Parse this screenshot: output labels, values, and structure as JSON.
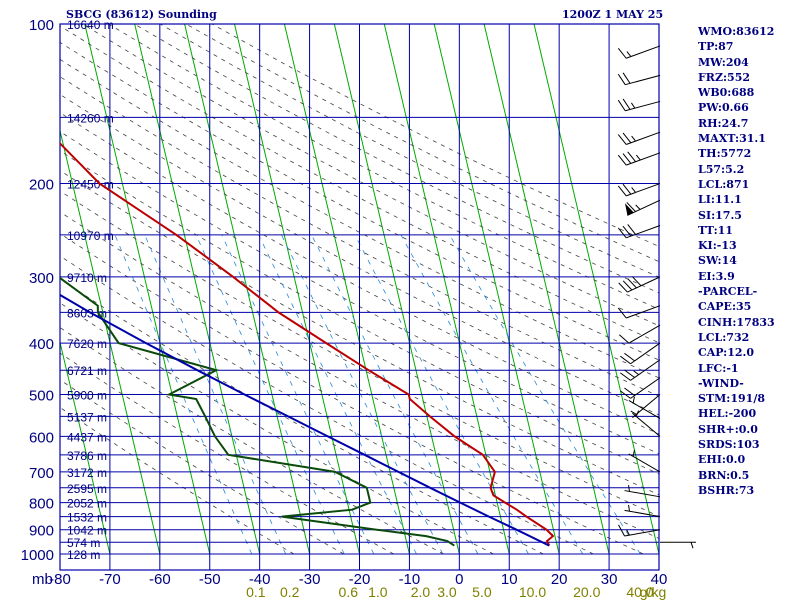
{
  "header": {
    "station": "SBCG (83612) Sounding",
    "time": "1200Z  1 MAY 25"
  },
  "indices": [
    "WMO:83612",
    "TP:87",
    "MW:204",
    "FRZ:552",
    "WB0:688",
    "PW:0.66",
    "RH:24.7",
    "MAXT:31.1",
    "TH:5772",
    "L57:5.2",
    "LCL:871",
    "LI:11.1",
    "SI:17.5",
    "TT:11",
    "KI:-13",
    "SW:14",
    "EI:3.9",
    "-PARCEL-",
    "CAPE:35",
    "CINH:17833",
    "LCL:732",
    "CAP:12.0",
    "LFC:-1",
    "-WIND-",
    "STM:191/8",
    "HEL:-200",
    "SHR+:0.0",
    "SRDS:103",
    "EHI:0.0",
    "BRN:0.5",
    "BSHR:73"
  ],
  "colors": {
    "grid": "#0000aa",
    "isotherm_skew": "#00aa00",
    "dry_adiabat": "#444444",
    "mixing_ratio": "#2a8ad8",
    "temperature": "#bb0000",
    "dewpoint": "#0a4a0a",
    "parcel": "#0000aa",
    "labels": "#000080",
    "mixing_labels": "#808000",
    "wind": "#000000"
  },
  "chart_data": {
    "type": "skew-t",
    "xlabel": "",
    "ylabel": "mb",
    "pressure_axis": {
      "ticks": [
        100,
        200,
        300,
        400,
        500,
        600,
        700,
        800,
        900,
        1000
      ],
      "label": "mb",
      "scale": "log",
      "ylim": [
        1000,
        100
      ]
    },
    "temperature_axis": {
      "ticks": [
        -80,
        -70,
        -60,
        -50,
        -40,
        -30,
        -20,
        -10,
        0,
        10,
        20,
        30,
        40
      ],
      "xlim": [
        -80,
        40
      ]
    },
    "height_labels": [
      {
        "p": 100,
        "label": "16640 m"
      },
      {
        "p": 150,
        "label": "14260 m"
      },
      {
        "p": 200,
        "label": "12450 m"
      },
      {
        "p": 250,
        "label": "10970 m"
      },
      {
        "p": 300,
        "label": "9710 m"
      },
      {
        "p": 350,
        "label": "8603 m"
      },
      {
        "p": 400,
        "label": "7620 m"
      },
      {
        "p": 450,
        "label": "6721 m"
      },
      {
        "p": 500,
        "label": "5900 m"
      },
      {
        "p": 550,
        "label": "5137 m"
      },
      {
        "p": 600,
        "label": "4437 m"
      },
      {
        "p": 650,
        "label": "3786 m"
      },
      {
        "p": 700,
        "label": "3172 m"
      },
      {
        "p": 750,
        "label": "2595 m"
      },
      {
        "p": 800,
        "label": "2052 m"
      },
      {
        "p": 850,
        "label": "1532 m"
      },
      {
        "p": 900,
        "label": "1042 m"
      },
      {
        "p": 950,
        "label": "574 m"
      },
      {
        "p": 1000,
        "label": "128 m"
      }
    ],
    "mixing_ratio_labels": [
      "0.1",
      "0.2",
      "0.6",
      "1.0",
      "2.0",
      "3.0",
      "5.0",
      "10.0",
      "20.0",
      "40.0"
    ],
    "mixing_ratio_unit": "g/kg",
    "series": [
      {
        "name": "",
        "role": "temperature",
        "p": [
          964,
          945,
          925,
          900,
          850,
          825,
          800,
          775,
          750,
          700,
          650,
          600,
          550,
          510,
          500,
          450,
          400,
          350,
          340,
          300,
          250,
          200,
          150,
          125,
          100
        ],
        "t": [
          18.4,
          18.2,
          19.6,
          18.6,
          15.2,
          13.6,
          11.6,
          9.6,
          9.4,
          11.0,
          9.4,
          4.6,
          0.6,
          -2.6,
          -2.6,
          -9.5,
          -16.7,
          -24.8,
          -26.2,
          -32.2,
          -41.6,
          -54.6,
          -64.5,
          -68.0,
          -76.0
        ]
      },
      {
        "name": "",
        "role": "dewpoint",
        "p": [
          964,
          945,
          925,
          900,
          850,
          825,
          800,
          775,
          750,
          700,
          650,
          600,
          550,
          510,
          500,
          450,
          400,
          350,
          340,
          300,
          250,
          200,
          150,
          125,
          100
        ],
        "t": [
          -0.6,
          -1.8,
          -5.8,
          -15.4,
          -33.8,
          -19.4,
          -15.4,
          -15.4,
          -15.4,
          -21.0,
          -41.6,
          -43.4,
          -44.4,
          -45.4,
          -50.6,
          -40.0,
          -58.3,
          -61.0,
          -60.7,
          -67.2,
          -75.3,
          -80.8,
          -85.5,
          -86.0,
          -88.0
        ]
      },
      {
        "name": "",
        "role": "parcel",
        "p": [
          964,
          900,
          850,
          800,
          750,
          700,
          650,
          600,
          550,
          500,
          450,
          400,
          350,
          300,
          250,
          200,
          150,
          125
        ],
        "t": [
          18.4,
          12.6,
          7.7,
          2.6,
          -2.7,
          -8.3,
          -14.3,
          -20.8,
          -27.8,
          -35.5,
          -43.8,
          -52.8,
          -62.6,
          -73.1,
          -84.2,
          -96.1,
          -109.5,
          -117.0
        ]
      }
    ],
    "wind_barbs": [
      {
        "p": 110,
        "dir": 250,
        "spd": 15
      },
      {
        "p": 125,
        "dir": 255,
        "spd": 20
      },
      {
        "p": 140,
        "dir": 255,
        "spd": 25
      },
      {
        "p": 160,
        "dir": 250,
        "spd": 25
      },
      {
        "p": 175,
        "dir": 250,
        "spd": 35
      },
      {
        "p": 200,
        "dir": 250,
        "spd": 25
      },
      {
        "p": 215,
        "dir": 245,
        "spd": 65
      },
      {
        "p": 240,
        "dir": 250,
        "spd": 30
      },
      {
        "p": 300,
        "dir": 245,
        "spd": 40
      },
      {
        "p": 340,
        "dir": 250,
        "spd": 10
      },
      {
        "p": 370,
        "dir": 240,
        "spd": 10
      },
      {
        "p": 400,
        "dir": 235,
        "spd": 20
      },
      {
        "p": 430,
        "dir": 235,
        "spd": 25
      },
      {
        "p": 465,
        "dir": 235,
        "spd": 20
      },
      {
        "p": 500,
        "dir": 230,
        "spd": 5
      },
      {
        "p": 555,
        "dir": 300,
        "spd": 5
      },
      {
        "p": 600,
        "dir": 310,
        "spd": 5
      },
      {
        "p": 700,
        "dir": 300,
        "spd": 5
      },
      {
        "p": 780,
        "dir": 280,
        "spd": 5
      },
      {
        "p": 850,
        "dir": 280,
        "spd": 5
      },
      {
        "p": 900,
        "dir": 260,
        "spd": 15
      },
      {
        "p": 950,
        "dir": 90,
        "spd": 5
      }
    ]
  }
}
